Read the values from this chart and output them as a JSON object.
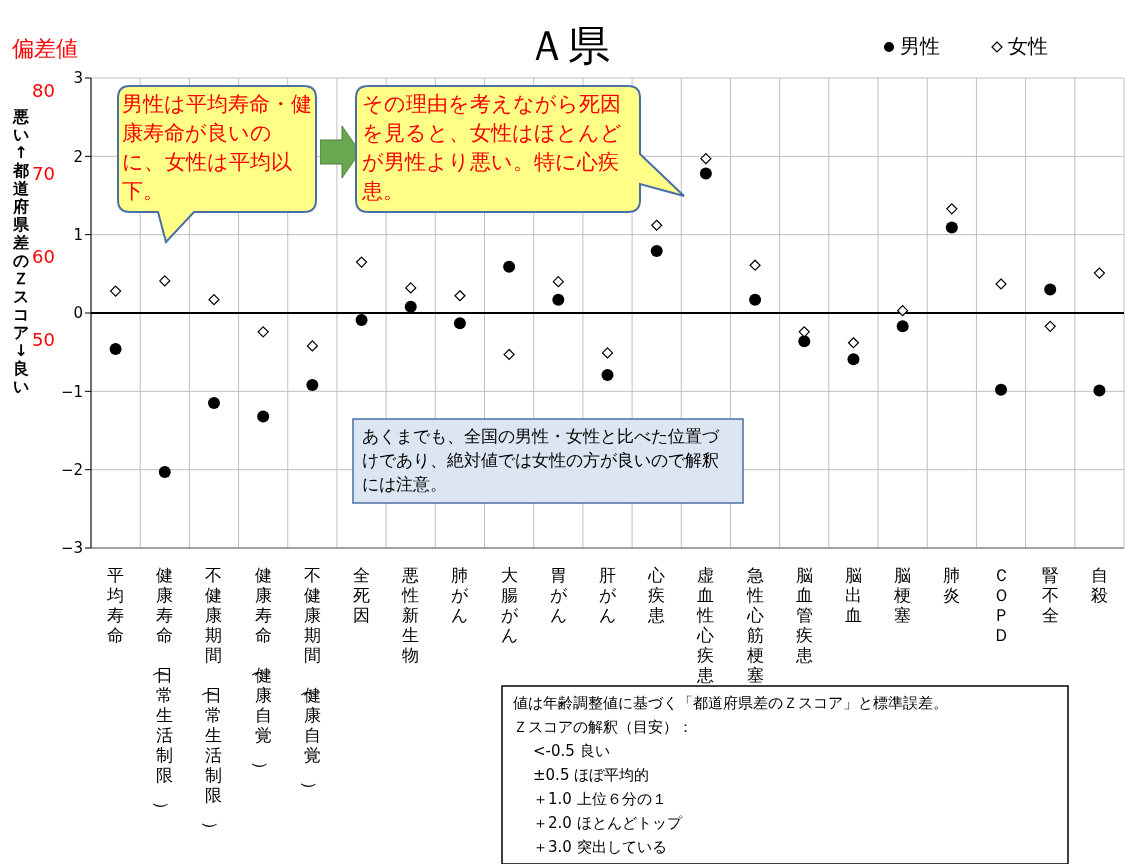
{
  "chart_data": {
    "type": "scatter",
    "title": "Ａ県",
    "ylabel": "悪い↑　都道府県差のＺスコア　↓良い",
    "y2label": "偏差値",
    "categories": [
      "平均寿命",
      "健康寿命（日常生活制限）",
      "不健康期間（日常生活制限）",
      "健康寿命（健康自覚）",
      "不健康期間（健康自覚）",
      "全死因",
      "悪性新生物",
      "肺がん",
      "大腸がん",
      "胃がん",
      "肝がん",
      "心疾患",
      "虚血性心疾患",
      "急性心筋梗塞",
      "脳血管疾患",
      "脳出血",
      "脳梗塞",
      "肺炎",
      "ＣＯＰＤ",
      "腎不全",
      "自殺"
    ],
    "series": [
      {
        "name": "男性",
        "color": "#000000",
        "marker": "circle",
        "values": [
          -0.46,
          -2.03,
          -1.15,
          -1.32,
          -0.92,
          -0.09,
          0.08,
          -0.13,
          0.59,
          0.17,
          -0.79,
          0.79,
          1.78,
          0.17,
          -0.36,
          -0.59,
          -0.17,
          1.09,
          -0.98,
          0.3,
          -0.99
        ]
      },
      {
        "name": "女性",
        "color": "#000000",
        "marker": "diamond",
        "values": [
          0.28,
          0.41,
          0.17,
          -0.24,
          -0.42,
          0.65,
          0.32,
          0.22,
          -0.53,
          0.4,
          -0.51,
          1.12,
          1.97,
          0.61,
          -0.24,
          -0.38,
          0.03,
          1.33,
          0.37,
          -0.17,
          0.51
        ]
      }
    ],
    "ylim": [
      -3,
      3
    ],
    "yticks": [
      -3,
      -2,
      -1,
      0,
      1,
      2,
      3
    ],
    "y2lim": [
      25,
      81.5
    ],
    "y2ticks": [
      50,
      60,
      70,
      80
    ],
    "grid": true,
    "legend": "top right",
    "ref_lines": [
      {
        "axis": "y",
        "value": 0,
        "color": "#000000"
      }
    ],
    "annotations": [
      "男性は平均寿命・健康寿命が良いのに、女性は平均以下。",
      "その理由を考えながら死因を見ると、女性はほとんどが男性より悪い。特に心疾患。",
      "あくまでも、全国の男性・女性と比べた位置づけであり、絶対値では女性の方が良いので解釈には注意。",
      "値は年齢調整値に基づく「都道府県差のＺスコア」と標準誤差。",
      "Ｚスコアの解釈（目安）：",
      "<-0.5 良い",
      "±0.5 ほぼ平均的",
      "＋1.0 上位６分の１",
      "＋2.0 ほとんどトップ",
      "＋3.0 突出している"
    ]
  }
}
